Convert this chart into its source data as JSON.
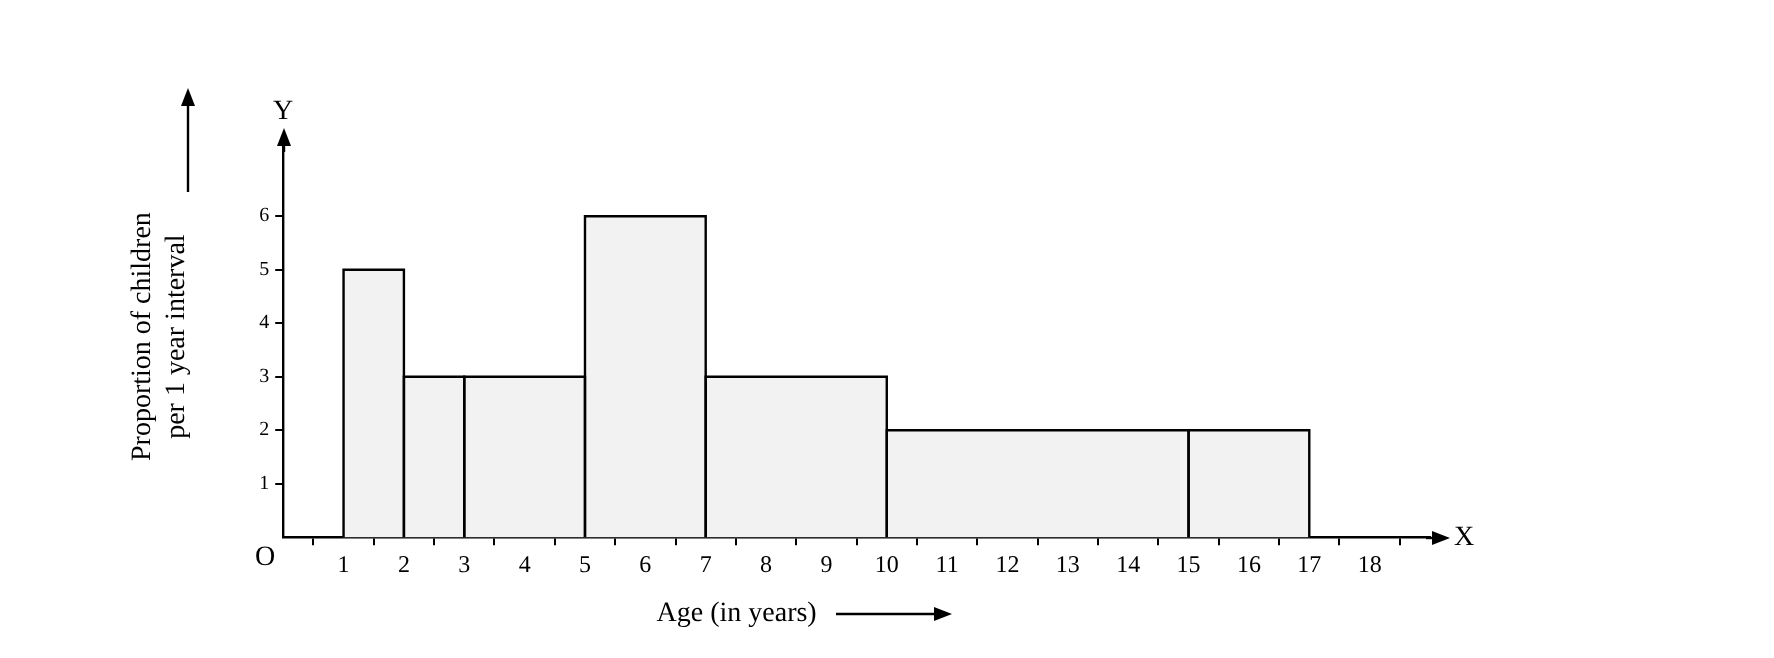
{
  "chart_data": {
    "type": "histogram",
    "xlabel": "Age (in years)",
    "ylabel": "Proportion of children per 1 year interval",
    "bins": [
      1,
      2,
      3,
      5,
      7,
      10,
      15,
      17
    ],
    "values": [
      5,
      3,
      3,
      6,
      3,
      2,
      2
    ],
    "color": "#f2f2f2",
    "xlim": [
      0,
      19
    ],
    "xticks": [
      1,
      2,
      3,
      4,
      5,
      6,
      7,
      8,
      9,
      10,
      11,
      12,
      13,
      14,
      15,
      16,
      17,
      18
    ],
    "ylim": [
      0,
      7.5
    ],
    "yticks": [
      1,
      2,
      3,
      4,
      5,
      6
    ],
    "grid": false,
    "legend": false,
    "annotations": [
      "O",
      "X",
      "Y"
    ]
  }
}
